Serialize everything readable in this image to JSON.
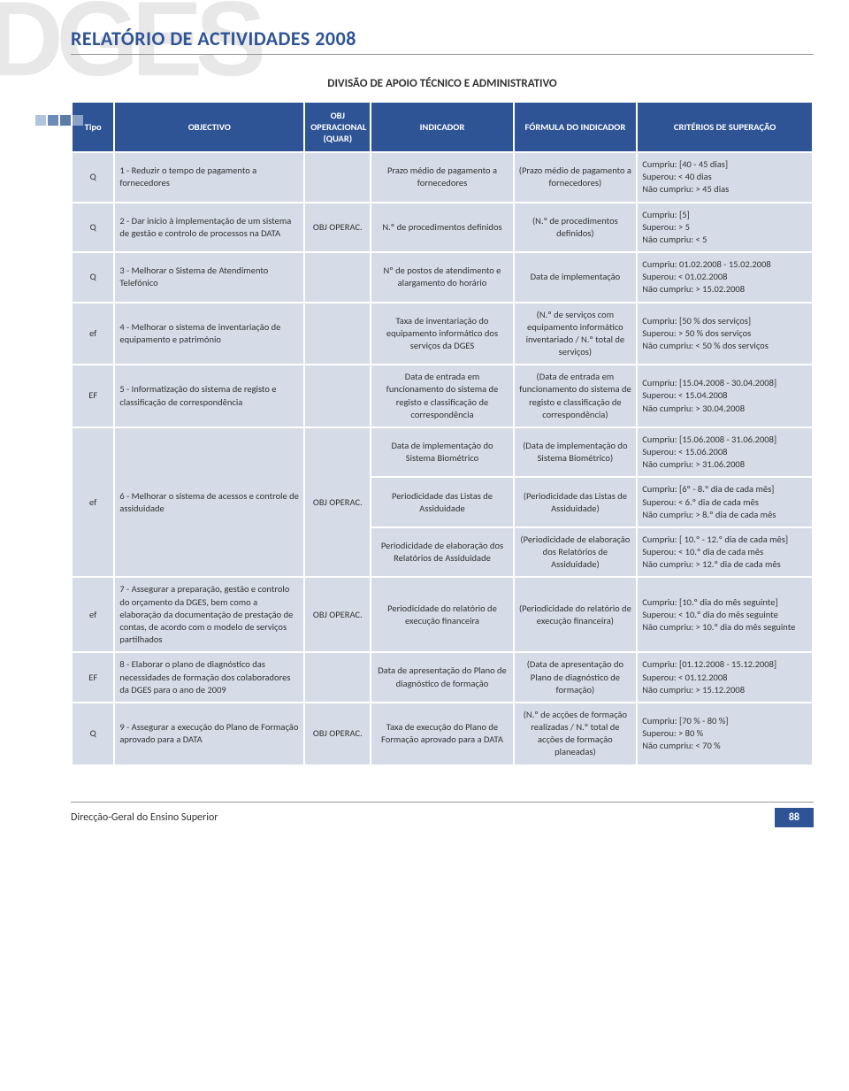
{
  "watermark": "DGES",
  "header": {
    "title": "RELATÓRIO DE ACTIVIDADES 2008"
  },
  "section": {
    "title": "DIVISÃO DE APOIO TÉCNICO E ADMINISTRATIVO"
  },
  "squares": [
    "#b0c4de",
    "#6b8bb8",
    "#5b7ba8",
    "#8aa3c4"
  ],
  "columns": [
    {
      "label": "Tipo",
      "class": "col-tipo"
    },
    {
      "label": "OBJECTIVO",
      "class": "col-obj"
    },
    {
      "label": "OBJ OPERACIONAL (QUAR)",
      "class": "col-objop"
    },
    {
      "label": "INDICADOR",
      "class": "col-ind"
    },
    {
      "label": "FÓRMULA DO INDICADOR",
      "class": "col-form"
    },
    {
      "label": "CRITÉRIOS DE SUPERAÇÃO",
      "class": "col-crit"
    }
  ],
  "rows": [
    {
      "tipo": "Q",
      "obj": "1 - Reduzir o tempo de pagamento a fornecedores",
      "oper": "",
      "ind": "Prazo médio de pagamento a fornecedores",
      "form": "(Prazo médio de pagamento a fornecedores)",
      "crit": "Cumpriu: [40 - 45 dias]\nSuperou: < 40 dias\nNão cumpriu: > 45 dias"
    },
    {
      "tipo": "Q",
      "obj": "2 - Dar início à implementação de um sistema de gestão e controlo de processos na DATA",
      "oper": "OBJ OPERAC.",
      "ind": "N.º de procedimentos definidos",
      "form": "(N.º de procedimentos definidos)",
      "crit": "Cumpriu: [5]\nSuperou: > 5\nNão cumpriu: < 5"
    },
    {
      "tipo": "Q",
      "obj": "3 - Melhorar o Sistema de Atendimento Telefónico",
      "oper": "",
      "ind": "Nº de postos de atendimento e alargamento do horário",
      "form": "Data de implementação",
      "crit": "Cumpriu: 01.02.2008 - 15.02.2008\nSuperou: < 01.02.2008\nNão cumpriu:  > 15.02.2008"
    },
    {
      "tipo": "ef",
      "obj": "4 - Melhorar o sistema de inventariação de equipamento e património",
      "oper": "",
      "ind": "Taxa de inventariação do equipamento informático dos serviços da DGES",
      "form": "(N.º de serviços com equipamento informático inventariado / N.º total de serviços)",
      "crit": "Cumpriu: [50 % dos serviços]\nSuperou: > 50 % dos serviços\nNão cumpriu: < 50 % dos serviços"
    },
    {
      "tipo": "EF",
      "obj": "5 - Informatização do sistema de registo e classificação de correspondência",
      "oper": "",
      "ind": "Data de entrada em funcionamento do sistema de registo e classificação de correspondência",
      "form": "(Data de entrada em funcionamento do sistema de registo e classificação de correspondência)",
      "crit": "Cumpriu: [15.04.2008 - 30.04.2008]\nSuperou: < 15.04.2008\nNão cumpriu: > 30.04.2008"
    }
  ],
  "row6": {
    "tipo": "ef",
    "obj": "6 - Melhorar o sistema de acessos e controle de assiduidade",
    "oper": "OBJ OPERAC.",
    "subs": [
      {
        "ind": "Data de implementação do Sistema Biométrico",
        "form": "(Data de implementação do Sistema Biométrico)",
        "crit": "Cumpriu: [15.06.2008 - 31.06.2008]\nSuperou: < 15.06.2008\nNão cumpriu: > 31.06.2008"
      },
      {
        "ind": "Periodicidade das Listas de Assiduidade",
        "form": "(Periodicidade das Listas de Assiduidade)",
        "crit": "Cumpriu: [6º - 8.º dia de cada mês]\nSuperou: <  6.º dia de cada mês\nNão cumpriu:  > 8.º dia de cada mês"
      },
      {
        "ind": "Periodicidade de elaboração dos Relatórios de Assiduidade",
        "form": "(Periodicidade de elaboração dos Relatórios de Assiduidade)",
        "crit": "Cumpriu: [ 10.º - 12.º dia de cada mês]\nSuperou:  < 10.º dia de cada mês\nNão cumpriu: > 12.º dia de cada mês"
      }
    ]
  },
  "rows_bottom": [
    {
      "tipo": "ef",
      "obj": "7 - Assegurar a preparação, gestão e controlo do orçamento da DGES, bem como a elaboração da documentação de prestação de contas, de acordo com o modelo de serviços partilhados",
      "oper": "OBJ OPERAC.",
      "ind": "Periodicidade do relatório de execução financeira",
      "form": "(Periodicidade do relatório de execução financeira)",
      "crit": "Cumpriu: [10.º dia do mês seguinte]\nSuperou: < 10.º dia do mês seguinte\nNão cumpriu: > 10.º dia do mês seguinte"
    },
    {
      "tipo": "EF",
      "obj": "8 - Elaborar o plano de diagnóstico das necessidades de formação dos colaboradores da DGES para o ano de 2009",
      "oper": "",
      "ind": "Data de apresentação do Plano de diagnóstico de formação",
      "form": "(Data de apresentação do Plano de diagnóstico de formação)",
      "crit": "Cumpriu: [01.12.2008 - 15.12.2008]\nSuperou:  < 01.12.2008\nNão cumpriu: > 15.12.2008"
    },
    {
      "tipo": "Q",
      "obj": "9 - Assegurar a execução do Plano de Formação aprovado para a DATA",
      "oper": "OBJ OPERAC.",
      "ind": "Taxa de execução do Plano de Formação aprovado para a DATA",
      "form": "(N.º de acções de formação realizadas / N.º total de acções de formação planeadas)",
      "crit": "Cumpriu: [70 % - 80 %]\nSuperou: > 80 %\nNão cumpriu: < 70 %"
    }
  ],
  "footer": {
    "text": "Direcção-Geral do Ensino Superior",
    "page": "88"
  }
}
